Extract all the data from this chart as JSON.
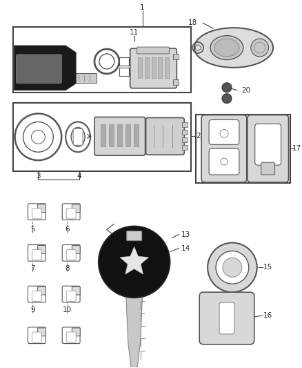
{
  "background_color": "#ffffff",
  "fig_width": 4.38,
  "fig_height": 5.33,
  "dpi": 100,
  "text_color": "#2a2a2a",
  "line_color": "#444444",
  "part_edge": "#555555",
  "part_fill": "#e8e8e8"
}
